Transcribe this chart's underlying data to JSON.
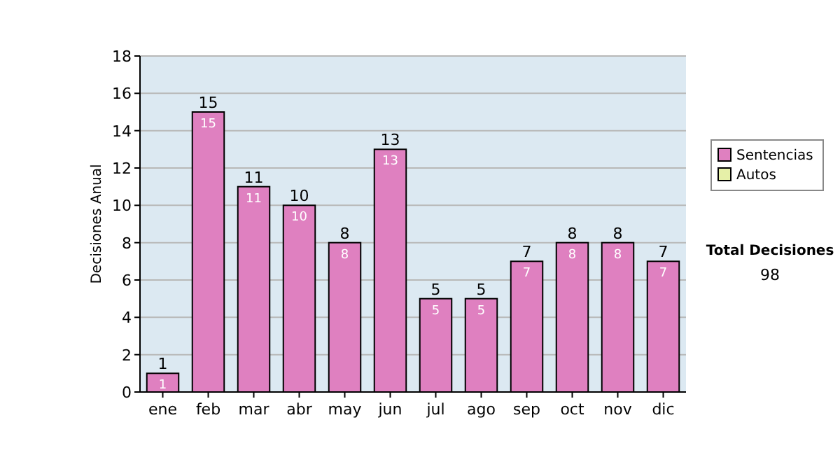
{
  "chart_data": {
    "type": "bar",
    "ylabel": "Decisiones Anual",
    "categories": [
      "ene",
      "feb",
      "mar",
      "abr",
      "may",
      "jun",
      "jul",
      "ago",
      "sep",
      "oct",
      "nov",
      "dic"
    ],
    "series": [
      {
        "name": "Sentencias",
        "color": "#df80c0",
        "values": [
          1,
          15,
          11,
          10,
          8,
          13,
          5,
          5,
          7,
          8,
          8,
          7
        ],
        "value_labels": [
          "1",
          "15",
          "11",
          "10",
          "8",
          "13",
          "5",
          "5",
          "7",
          "8",
          "8",
          "7"
        ]
      },
      {
        "name": "Autos",
        "color": "#e6f0a8",
        "values": [
          0,
          0,
          0,
          0,
          0,
          0,
          0,
          0,
          0,
          0,
          0,
          0
        ],
        "value_labels": [
          null,
          null,
          null,
          null,
          null,
          null,
          null,
          null,
          null,
          null,
          null,
          null
        ]
      }
    ],
    "stacked": true,
    "totals": [
      "1",
      "15",
      "11",
      "10",
      "8",
      "13",
      "5",
      "5",
      "7",
      "8",
      "8",
      "7"
    ],
    "ylim": [
      0,
      18
    ],
    "yticks": [
      0,
      2,
      4,
      6,
      8,
      10,
      12,
      14,
      16,
      18
    ],
    "grid": "y",
    "legend": "right",
    "annotations": [
      "Total Decisiones",
      "98"
    ]
  }
}
